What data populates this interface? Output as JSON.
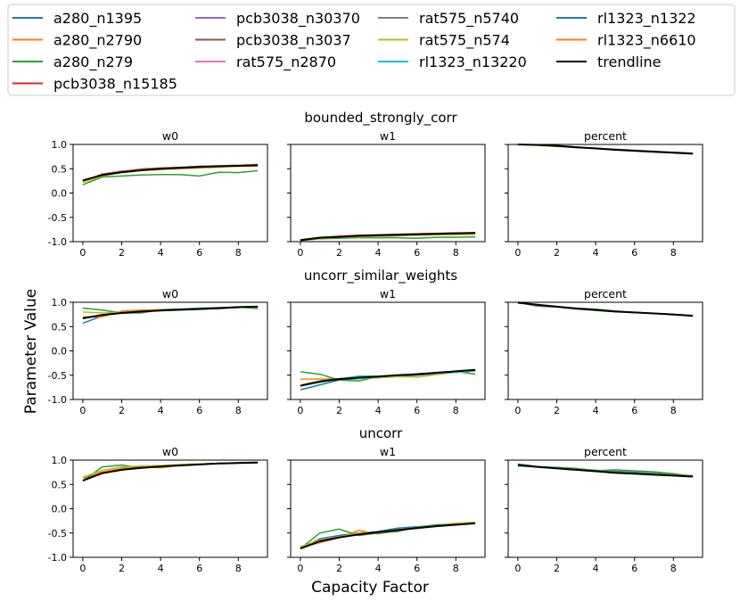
{
  "figure": {
    "ylabel": "Parameter Value",
    "xlabel": "Capacity Factor"
  },
  "legend": {
    "placement": "top",
    "entries": [
      {
        "name": "a280_n1395",
        "color": "#1f77b4"
      },
      {
        "name": "a280_n2790",
        "color": "#ff7f0e"
      },
      {
        "name": "a280_n279",
        "color": "#2ca02c"
      },
      {
        "name": "pcb3038_n15185",
        "color": "#d62728"
      },
      {
        "name": "pcb3038_n30370",
        "color": "#9467bd"
      },
      {
        "name": "pcb3038_n3037",
        "color": "#8c564b"
      },
      {
        "name": "rat575_n2870",
        "color": "#e377c2"
      },
      {
        "name": "rat575_n5740",
        "color": "#7f7f7f"
      },
      {
        "name": "rat575_n574",
        "color": "#bcbd22"
      },
      {
        "name": "rl1323_n13220",
        "color": "#17becf"
      },
      {
        "name": "rl1323_n1322",
        "color": "#1f77b4"
      },
      {
        "name": "rl1323_n6610",
        "color": "#ff7f0e"
      },
      {
        "name": "trendline",
        "color": "#000000"
      }
    ]
  },
  "chart_data": {
    "type": "line",
    "x": [
      0,
      1,
      2,
      3,
      4,
      5,
      6,
      7,
      8,
      9
    ],
    "xticks": [
      0,
      2,
      4,
      6,
      8
    ],
    "ylim": [
      -1.0,
      1.0
    ],
    "yticks": [
      "1.0",
      "0.5",
      "0.0",
      "-0.5",
      "-1.0"
    ],
    "grid": false,
    "rows": [
      {
        "title": "bounded_strongly_corr",
        "panels": [
          {
            "title": "w0",
            "series": [
              {
                "name": "a280_n1395",
                "values": [
                  0.25,
                  0.38,
                  0.43,
                  0.47,
                  0.49,
                  0.51,
                  0.53,
                  0.55,
                  0.56,
                  0.57
                ]
              },
              {
                "name": "a280_n2790",
                "values": [
                  0.22,
                  0.36,
                  0.44,
                  0.5,
                  0.52,
                  0.53,
                  0.54,
                  0.55,
                  0.57,
                  0.59
                ]
              },
              {
                "name": "a280_n279",
                "values": [
                  0.17,
                  0.33,
                  0.35,
                  0.37,
                  0.38,
                  0.38,
                  0.35,
                  0.43,
                  0.42,
                  0.46
                ]
              },
              {
                "name": "pcb3038_n15185",
                "values": [
                  0.24,
                  0.39,
                  0.45,
                  0.48,
                  0.5,
                  0.52,
                  0.55,
                  0.56,
                  0.57,
                  0.58
                ]
              },
              {
                "name": "pcb3038_n30370",
                "values": [
                  0.25,
                  0.38,
                  0.45,
                  0.49,
                  0.51,
                  0.53,
                  0.55,
                  0.56,
                  0.57,
                  0.58
                ]
              },
              {
                "name": "rat575_n574",
                "values": [
                  0.22,
                  0.35,
                  0.42,
                  0.46,
                  0.48,
                  0.5,
                  0.51,
                  0.53,
                  0.55,
                  0.55
                ]
              },
              {
                "name": "rl1323_n6610",
                "values": [
                  0.24,
                  0.37,
                  0.44,
                  0.48,
                  0.5,
                  0.52,
                  0.54,
                  0.56,
                  0.57,
                  0.58
                ]
              },
              {
                "name": "trendline",
                "values": [
                  0.26,
                  0.37,
                  0.43,
                  0.47,
                  0.5,
                  0.52,
                  0.54,
                  0.55,
                  0.56,
                  0.57
                ]
              }
            ]
          },
          {
            "title": "w1",
            "series": [
              {
                "name": "a280_n1395",
                "values": [
                  -0.97,
                  -0.92,
                  -0.9,
                  -0.88,
                  -0.87,
                  -0.86,
                  -0.85,
                  -0.84,
                  -0.83,
                  -0.83
                ]
              },
              {
                "name": "a280_n2790",
                "values": [
                  -0.96,
                  -0.91,
                  -0.89,
                  -0.87,
                  -0.86,
                  -0.85,
                  -0.84,
                  -0.83,
                  -0.82,
                  -0.81
                ]
              },
              {
                "name": "a280_n279",
                "values": [
                  -0.98,
                  -0.94,
                  -0.93,
                  -0.92,
                  -0.92,
                  -0.92,
                  -0.93,
                  -0.91,
                  -0.91,
                  -0.9
                ]
              },
              {
                "name": "pcb3038_n15185",
                "values": [
                  -0.97,
                  -0.92,
                  -0.89,
                  -0.87,
                  -0.86,
                  -0.85,
                  -0.84,
                  -0.83,
                  -0.82,
                  -0.82
                ]
              },
              {
                "name": "rat575_n574",
                "values": [
                  -0.97,
                  -0.93,
                  -0.91,
                  -0.9,
                  -0.89,
                  -0.88,
                  -0.87,
                  -0.86,
                  -0.86,
                  -0.85
                ]
              },
              {
                "name": "trendline",
                "values": [
                  -0.97,
                  -0.92,
                  -0.9,
                  -0.88,
                  -0.87,
                  -0.86,
                  -0.85,
                  -0.84,
                  -0.83,
                  -0.82
                ]
              }
            ]
          },
          {
            "title": "percent",
            "series": [
              {
                "name": "a280_n1395",
                "values": [
                  1.0,
                  0.99,
                  0.98,
                  0.95,
                  0.92,
                  0.9,
                  0.88,
                  0.86,
                  0.84,
                  0.82
                ]
              },
              {
                "name": "rat575_n574",
                "values": [
                  1.0,
                  0.98,
                  0.96,
                  0.94,
                  0.91,
                  0.89,
                  0.87,
                  0.85,
                  0.83,
                  0.81
                ]
              },
              {
                "name": "trendline",
                "values": [
                  1.0,
                  0.99,
                  0.97,
                  0.94,
                  0.92,
                  0.89,
                  0.87,
                  0.85,
                  0.83,
                  0.81
                ]
              }
            ]
          }
        ]
      },
      {
        "title": "uncorr_similar_weights",
        "panels": [
          {
            "title": "w0",
            "series": [
              {
                "name": "a280_n1395",
                "values": [
                  0.57,
                  0.72,
                  0.8,
                  0.82,
                  0.83,
                  0.84,
                  0.86,
                  0.87,
                  0.89,
                  0.91
                ]
              },
              {
                "name": "a280_n2790",
                "values": [
                  0.7,
                  0.7,
                  0.82,
                  0.84,
                  0.85,
                  0.86,
                  0.87,
                  0.88,
                  0.9,
                  0.91
                ]
              },
              {
                "name": "a280_n279",
                "values": [
                  0.88,
                  0.84,
                  0.78,
                  0.78,
                  0.85,
                  0.86,
                  0.88,
                  0.89,
                  0.9,
                  0.87
                ]
              },
              {
                "name": "rat575_n574",
                "values": [
                  0.8,
                  0.78,
                  0.79,
                  0.81,
                  0.84,
                  0.85,
                  0.86,
                  0.88,
                  0.9,
                  0.9
                ]
              },
              {
                "name": "trendline",
                "values": [
                  0.67,
                  0.74,
                  0.78,
                  0.81,
                  0.83,
                  0.85,
                  0.86,
                  0.88,
                  0.9,
                  0.91
                ]
              }
            ]
          },
          {
            "title": "w1",
            "series": [
              {
                "name": "a280_n1395",
                "values": [
                  -0.8,
                  -0.7,
                  -0.6,
                  -0.57,
                  -0.55,
                  -0.53,
                  -0.5,
                  -0.47,
                  -0.43,
                  -0.41
                ]
              },
              {
                "name": "a280_n2790",
                "values": [
                  -0.58,
                  -0.58,
                  -0.57,
                  -0.55,
                  -0.53,
                  -0.5,
                  -0.48,
                  -0.45,
                  -0.43,
                  -0.4
                ]
              },
              {
                "name": "a280_n279",
                "values": [
                  -0.43,
                  -0.48,
                  -0.6,
                  -0.62,
                  -0.53,
                  -0.52,
                  -0.47,
                  -0.45,
                  -0.42,
                  -0.48
                ]
              },
              {
                "name": "rat575_n574",
                "values": [
                  -0.7,
                  -0.62,
                  -0.58,
                  -0.56,
                  -0.55,
                  -0.53,
                  -0.54,
                  -0.49,
                  -0.44,
                  -0.42
                ]
              },
              {
                "name": "rl1323_n13220",
                "values": [
                  -0.72,
                  -0.65,
                  -0.58,
                  -0.52,
                  -0.52,
                  -0.5,
                  -0.48,
                  -0.46,
                  -0.44,
                  -0.41
                ]
              },
              {
                "name": "trendline",
                "values": [
                  -0.72,
                  -0.63,
                  -0.58,
                  -0.55,
                  -0.53,
                  -0.5,
                  -0.48,
                  -0.45,
                  -0.42,
                  -0.39
                ]
              }
            ]
          },
          {
            "title": "percent",
            "series": [
              {
                "name": "a280_n1395",
                "values": [
                  1.0,
                  0.92,
                  0.9,
                  0.88,
                  0.85,
                  0.81,
                  0.79,
                  0.77,
                  0.75,
                  0.72
                ]
              },
              {
                "name": "a280_n279",
                "values": [
                  1.0,
                  0.93,
                  0.91,
                  0.88,
                  0.86,
                  0.82,
                  0.79,
                  0.77,
                  0.75,
                  0.73
                ]
              },
              {
                "name": "rl1323_n6610",
                "values": [
                  0.99,
                  0.94,
                  0.9,
                  0.87,
                  0.84,
                  0.81,
                  0.79,
                  0.77,
                  0.74,
                  0.72
                ]
              },
              {
                "name": "trendline",
                "values": [
                  0.99,
                  0.95,
                  0.91,
                  0.87,
                  0.84,
                  0.81,
                  0.79,
                  0.77,
                  0.75,
                  0.72
                ]
              }
            ]
          }
        ]
      },
      {
        "title": "uncorr",
        "panels": [
          {
            "title": "w0",
            "series": [
              {
                "name": "a280_n1395",
                "values": [
                  0.58,
                  0.75,
                  0.82,
                  0.86,
                  0.88,
                  0.9,
                  0.92,
                  0.93,
                  0.94,
                  0.95
                ]
              },
              {
                "name": "a280_n2790",
                "values": [
                  0.63,
                  0.76,
                  0.83,
                  0.88,
                  0.84,
                  0.9,
                  0.92,
                  0.93,
                  0.95,
                  0.96
                ]
              },
              {
                "name": "a280_n279",
                "values": [
                  0.57,
                  0.86,
                  0.9,
                  0.84,
                  0.86,
                  0.91,
                  0.92,
                  0.93,
                  0.94,
                  0.95
                ]
              },
              {
                "name": "rat575_n574",
                "values": [
                  0.65,
                  0.79,
                  0.86,
                  0.88,
                  0.89,
                  0.91,
                  0.92,
                  0.93,
                  0.94,
                  0.96
                ]
              },
              {
                "name": "trendline",
                "values": [
                  0.58,
                  0.73,
                  0.8,
                  0.84,
                  0.87,
                  0.89,
                  0.91,
                  0.93,
                  0.94,
                  0.95
                ]
              }
            ]
          },
          {
            "title": "w1",
            "series": [
              {
                "name": "a280_n1395",
                "values": [
                  -0.82,
                  -0.62,
                  -0.55,
                  -0.5,
                  -0.47,
                  -0.4,
                  -0.37,
                  -0.34,
                  -0.32,
                  -0.28
                ]
              },
              {
                "name": "a280_n2790",
                "values": [
                  -0.8,
                  -0.7,
                  -0.6,
                  -0.45,
                  -0.52,
                  -0.45,
                  -0.4,
                  -0.35,
                  -0.3,
                  -0.28
                ]
              },
              {
                "name": "a280_n279",
                "values": [
                  -0.82,
                  -0.5,
                  -0.42,
                  -0.55,
                  -0.5,
                  -0.47,
                  -0.38,
                  -0.33,
                  -0.32,
                  -0.3
                ]
              },
              {
                "name": "rat575_n574",
                "values": [
                  -0.78,
                  -0.65,
                  -0.58,
                  -0.5,
                  -0.48,
                  -0.43,
                  -0.4,
                  -0.36,
                  -0.32,
                  -0.28
                ]
              },
              {
                "name": "trendline",
                "values": [
                  -0.82,
                  -0.67,
                  -0.59,
                  -0.53,
                  -0.48,
                  -0.44,
                  -0.4,
                  -0.36,
                  -0.33,
                  -0.3
                ]
              }
            ]
          },
          {
            "title": "percent",
            "series": [
              {
                "name": "a280_n1395",
                "values": [
                  0.88,
                  0.86,
                  0.84,
                  0.82,
                  0.79,
                  0.77,
                  0.75,
                  0.73,
                  0.7,
                  0.68
                ]
              },
              {
                "name": "a280_n279",
                "values": [
                  0.92,
                  0.87,
                  0.85,
                  0.83,
                  0.78,
                  0.8,
                  0.78,
                  0.76,
                  0.72,
                  0.67
                ]
              },
              {
                "name": "rl1323_n6610",
                "values": [
                  0.9,
                  0.86,
                  0.83,
                  0.8,
                  0.77,
                  0.75,
                  0.73,
                  0.71,
                  0.69,
                  0.67
                ]
              },
              {
                "name": "trendline",
                "values": [
                  0.9,
                  0.86,
                  0.83,
                  0.8,
                  0.77,
                  0.74,
                  0.72,
                  0.7,
                  0.68,
                  0.66
                ]
              }
            ]
          }
        ]
      }
    ]
  }
}
